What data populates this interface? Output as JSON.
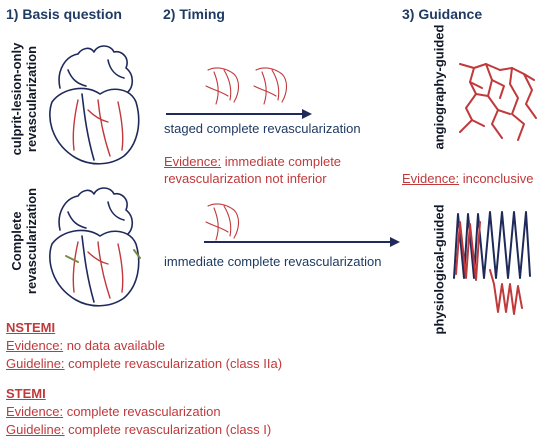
{
  "headers": {
    "basis": "1) Basis question",
    "timing": "2) Timing",
    "guidance": "3) Guidance"
  },
  "row_labels": {
    "culprit": [
      "culprit-lesion-only",
      "revascularization"
    ],
    "complete": [
      "Complete",
      "revascularization"
    ]
  },
  "timing": {
    "staged": "staged complete revascularization",
    "immediate": "immediate complete revascularization",
    "evidence_prefix": "Evidence:",
    "evidence_line1": " immediate complete",
    "evidence_line2": "revascularization not inferior"
  },
  "guidance": {
    "angio_label": "angiography-guided",
    "physio_label": "physiological-guided",
    "evidence_prefix": "Evidence:",
    "evidence_text": " inconclusive"
  },
  "nstemi": {
    "title": "NSTEMI",
    "evidence_prefix": "Evidence:",
    "evidence_text": " no data available",
    "guideline_prefix": "Guideline:",
    "guideline_text": " complete revascularization (class IIa)"
  },
  "stemi": {
    "title": "STEMI",
    "evidence_prefix": "Evidence:",
    "evidence_text": " complete revascularization",
    "guideline_prefix": "Guideline:",
    "guideline_text": " complete revascularization (class I)"
  },
  "colors": {
    "navy": "#1f2a5a",
    "red": "#c0393b",
    "heading": "#1f3a63"
  }
}
